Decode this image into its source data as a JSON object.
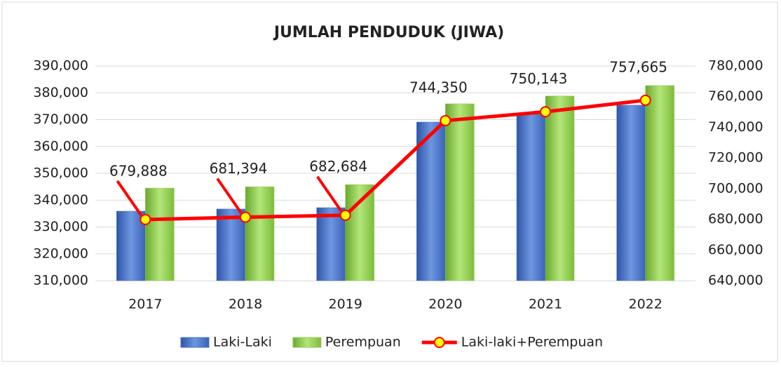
{
  "chart_data": {
    "type": "bar-line",
    "title": "JUMLAH PENDUDUK (JIWA)",
    "categories": [
      "2017",
      "2018",
      "2019",
      "2020",
      "2021",
      "2022"
    ],
    "series": [
      {
        "name": "Laki-Laki",
        "color": "#4472c4",
        "type": "bar",
        "axis": "y",
        "values": [
          335900,
          336700,
          337200,
          369100,
          372000,
          375400
        ]
      },
      {
        "name": "Perempuan",
        "color": "#92d050",
        "type": "bar",
        "axis": "y",
        "values": [
          344500,
          345000,
          345800,
          375900,
          378800,
          382700
        ]
      },
      {
        "name": "Laki-laki+Perempuan",
        "color": "#ff0000",
        "marker_color": "#ffff00",
        "type": "line",
        "axis": "y2",
        "values": [
          679888,
          681394,
          682684,
          744350,
          750143,
          757665
        ],
        "value_labels": [
          "679,888",
          "681,394",
          "682,684",
          "744,350",
          "750,143",
          "757,665"
        ]
      }
    ],
    "ylim": [
      310000,
      390000
    ],
    "yticks": [
      {
        "value": 310000,
        "label": "310,000"
      },
      {
        "value": 320000,
        "label": "320,000"
      },
      {
        "value": 330000,
        "label": "330,000"
      },
      {
        "value": 340000,
        "label": "340,000"
      },
      {
        "value": 350000,
        "label": "350,000"
      },
      {
        "value": 360000,
        "label": "360,000"
      },
      {
        "value": 370000,
        "label": "370,000"
      },
      {
        "value": 380000,
        "label": "380,000"
      },
      {
        "value": 390000,
        "label": "390,000"
      }
    ],
    "y2lim": [
      640000,
      780000
    ],
    "y2ticks": [
      {
        "value": 640000,
        "label": "640,000"
      },
      {
        "value": 660000,
        "label": "660,000"
      },
      {
        "value": 680000,
        "label": "680,000"
      },
      {
        "value": 700000,
        "label": "700,000"
      },
      {
        "value": 720000,
        "label": "720,000"
      },
      {
        "value": 740000,
        "label": "740,000"
      },
      {
        "value": 760000,
        "label": "760,000"
      },
      {
        "value": 780000,
        "label": "780,000"
      }
    ],
    "grid": true,
    "legend": "bottom"
  }
}
